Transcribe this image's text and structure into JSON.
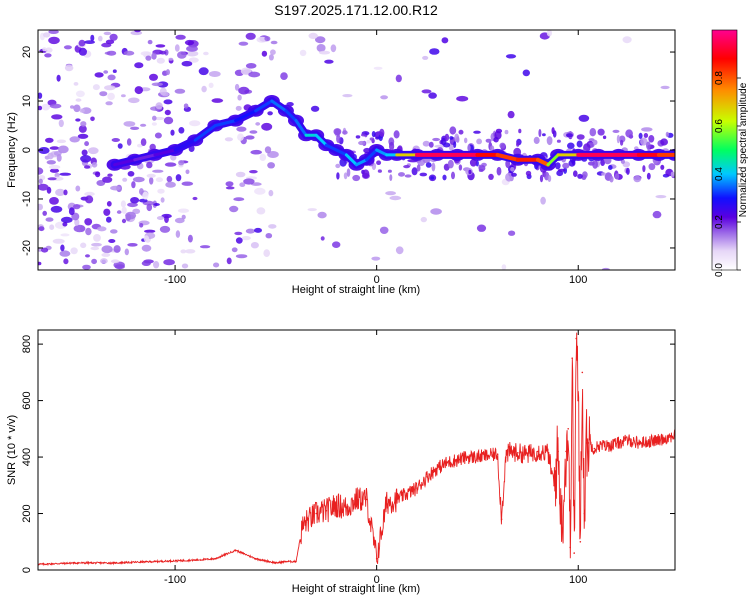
{
  "figure_title": "S197.2025.171.12.00.R12",
  "chart_data": [
    {
      "type": "heatmap",
      "xlabel": "Height of straight line (km)",
      "ylabel": "Frequency (Hz)",
      "xlim": [
        -168,
        148
      ],
      "ylim": [
        -24.5,
        24.5
      ],
      "xticks": [
        -100,
        0,
        100
      ],
      "yticks": [
        -20,
        -10,
        0,
        10,
        20
      ],
      "colorbar": {
        "label": "Normalized spectral amplitude",
        "range": [
          0.0,
          1.0
        ],
        "ticks": [
          0.0,
          0.2,
          0.4,
          0.6,
          0.8
        ],
        "tick_labels": [
          "0.0",
          "0.2",
          "0.4",
          "0.6",
          "0.8"
        ],
        "colormap": "rainbow",
        "colors": [
          "#ffffff",
          "#e6d6f7",
          "#a070e8",
          "#5a00e0",
          "#1010ff",
          "#00c8ff",
          "#00ff60",
          "#c8ff00",
          "#ff8c00",
          "#ff0000",
          "#ff0090"
        ]
      },
      "ridge": {
        "height_km": [
          -130,
          -120,
          -110,
          -100,
          -90,
          -80,
          -70,
          -60,
          -52,
          -45,
          -40,
          -35,
          -30,
          -25,
          -20,
          -15,
          -10,
          -5,
          0,
          5,
          10,
          20,
          30,
          40,
          50,
          60,
          70,
          80,
          85,
          90,
          100,
          110,
          120,
          130,
          140,
          148
        ],
        "frequency_hz": [
          -3,
          -2,
          -1,
          0,
          2,
          5,
          6,
          8,
          10,
          8,
          6,
          3,
          3,
          1,
          0,
          -1,
          -3,
          -2,
          0,
          -1,
          -1,
          -1,
          -1,
          -1,
          -1,
          -1,
          -2,
          -2,
          -3,
          -1,
          -1,
          -1,
          -1,
          -1,
          -1,
          -1
        ],
        "amplitude": [
          0.25,
          0.2,
          0.2,
          0.25,
          0.3,
          0.35,
          0.3,
          0.3,
          0.35,
          0.35,
          0.3,
          0.4,
          0.45,
          0.35,
          0.3,
          0.35,
          0.45,
          0.3,
          0.35,
          0.4,
          0.4,
          0.95,
          0.95,
          0.95,
          0.95,
          0.8,
          0.85,
          0.85,
          0.75,
          0.4,
          0.95,
          0.95,
          0.95,
          0.95,
          0.85,
          0.8
        ]
      }
    },
    {
      "type": "line",
      "xlabel": "Height of straight line (km)",
      "ylabel": "SNR (10 * v/v)",
      "xlim": [
        -168,
        148
      ],
      "ylim": [
        0,
        850
      ],
      "xticks": [
        -100,
        0,
        100
      ],
      "yticks": [
        0,
        200,
        400,
        600,
        800
      ],
      "line_color": "#e82020",
      "series": [
        {
          "x": [
            -168,
            -150,
            -130,
            -110,
            -90,
            -80,
            -70,
            -60,
            -50,
            -45,
            -40,
            -37,
            -35,
            -30,
            -25,
            -20,
            -15,
            -10,
            -5,
            0,
            5,
            10,
            15,
            20,
            25,
            30,
            35,
            40,
            45,
            50,
            55,
            60,
            62,
            64,
            66,
            70,
            75,
            80,
            85,
            88,
            90,
            92,
            94,
            95,
            96,
            97,
            98,
            99,
            100,
            101,
            102,
            103,
            104,
            105,
            108,
            110,
            115,
            120,
            125,
            130,
            135,
            140,
            145,
            148
          ],
          "y": [
            20,
            25,
            25,
            30,
            35,
            40,
            70,
            40,
            25,
            30,
            30,
            150,
            170,
            200,
            210,
            230,
            220,
            250,
            250,
            40,
            240,
            250,
            270,
            290,
            330,
            360,
            380,
            390,
            400,
            400,
            405,
            410,
            180,
            400,
            420,
            415,
            410,
            420,
            415,
            300,
            420,
            150,
            420,
            500,
            80,
            750,
            60,
            820,
            600,
            100,
            700,
            200,
            450,
            450,
            430,
            440,
            440,
            450,
            460,
            450,
            455,
            460,
            470,
            480
          ]
        }
      ]
    }
  ]
}
